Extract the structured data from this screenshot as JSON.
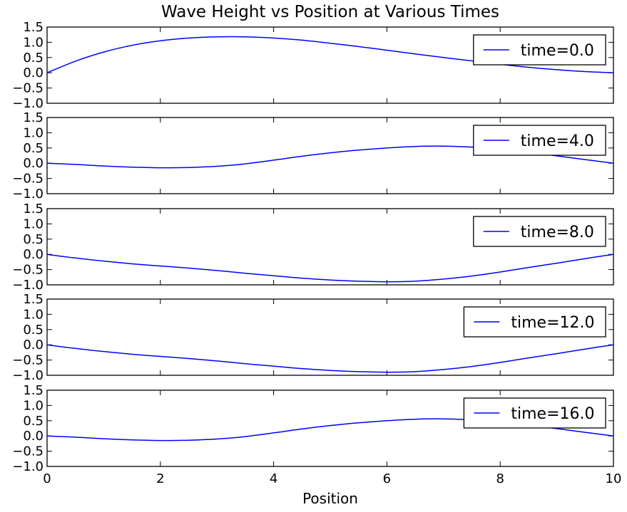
{
  "chart_data": {
    "type": "line",
    "title": "Wave Height vs Position at Various Times",
    "xlabel": "Position",
    "ylabel": "",
    "xlim": [
      0,
      10
    ],
    "ylim": [
      -1.0,
      1.5
    ],
    "xticks": [
      0,
      2,
      4,
      6,
      8,
      10
    ],
    "xtick_labels": [
      "0",
      "2",
      "4",
      "6",
      "8",
      "10"
    ],
    "yticks": [
      1.5,
      1.0,
      0.5,
      0.0,
      -0.5,
      -1.0
    ],
    "ytick_labels": [
      "1.5",
      "1.0",
      "0.5",
      "0.0",
      "−0.5",
      "−1.0"
    ],
    "grid": false,
    "legend_position": "upper right",
    "line_color": "#0000ff",
    "x": [
      0,
      0.5,
      1,
      1.5,
      2,
      2.5,
      3,
      3.5,
      4,
      4.5,
      5,
      5.5,
      6,
      6.5,
      7,
      7.5,
      8,
      8.5,
      9,
      9.5,
      10
    ],
    "panels": [
      {
        "name": "time=0.0",
        "values": [
          0.0,
          0.38,
          0.68,
          0.9,
          1.05,
          1.14,
          1.18,
          1.18,
          1.14,
          1.07,
          0.97,
          0.86,
          0.74,
          0.62,
          0.5,
          0.39,
          0.28,
          0.18,
          0.1,
          0.04,
          0.0
        ]
      },
      {
        "name": "time=4.0",
        "values": [
          0.0,
          -0.04,
          -0.09,
          -0.13,
          -0.15,
          -0.14,
          -0.1,
          -0.02,
          0.1,
          0.23,
          0.34,
          0.43,
          0.5,
          0.55,
          0.56,
          0.53,
          0.46,
          0.36,
          0.24,
          0.12,
          0.0
        ]
      },
      {
        "name": "time=8.0",
        "values": [
          0.0,
          -0.12,
          -0.22,
          -0.31,
          -0.38,
          -0.45,
          -0.53,
          -0.62,
          -0.7,
          -0.78,
          -0.84,
          -0.88,
          -0.9,
          -0.88,
          -0.81,
          -0.71,
          -0.58,
          -0.43,
          -0.29,
          -0.14,
          0.0
        ]
      },
      {
        "name": "time=12.0",
        "values": [
          0.0,
          -0.12,
          -0.22,
          -0.31,
          -0.38,
          -0.45,
          -0.53,
          -0.62,
          -0.7,
          -0.78,
          -0.84,
          -0.88,
          -0.9,
          -0.88,
          -0.81,
          -0.71,
          -0.58,
          -0.43,
          -0.29,
          -0.14,
          0.0
        ]
      },
      {
        "name": "time=16.0",
        "values": [
          0.0,
          -0.04,
          -0.09,
          -0.13,
          -0.15,
          -0.14,
          -0.1,
          -0.02,
          0.1,
          0.23,
          0.34,
          0.43,
          0.5,
          0.55,
          0.56,
          0.53,
          0.46,
          0.36,
          0.24,
          0.12,
          0.0
        ]
      }
    ]
  }
}
